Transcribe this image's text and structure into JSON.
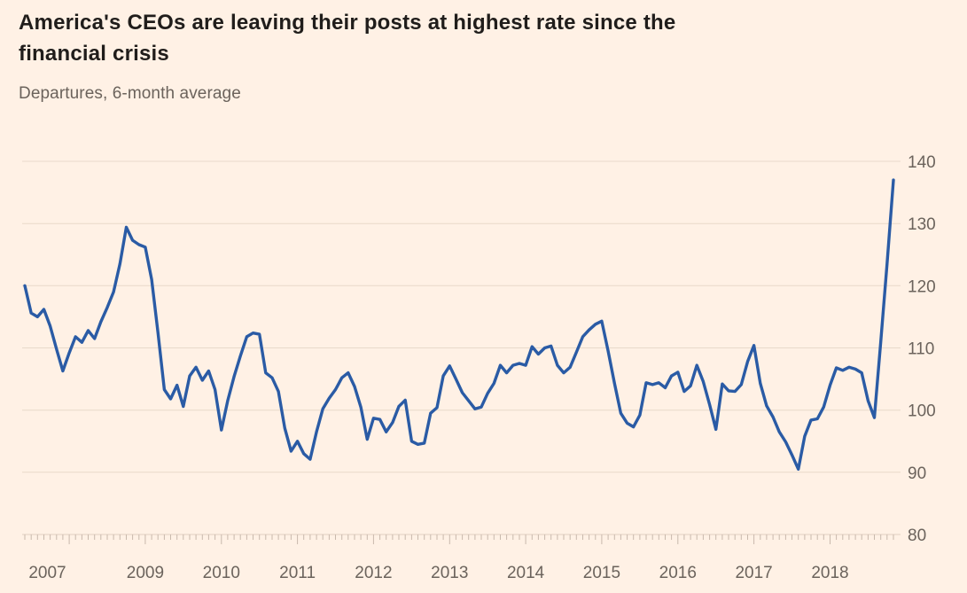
{
  "header": {
    "title_line1": "America's CEOs are leaving their posts at highest rate since the",
    "title_line2": "financial crisis",
    "subtitle": "Departures, 6-month average"
  },
  "chart_data": {
    "type": "line",
    "title": "America's CEOs are leaving their posts at highest rate since the financial crisis",
    "subtitle": "Departures, 6-month average",
    "series_name": "CEO departures, 6-month average",
    "frequency": "monthly",
    "start_month": "2007-06",
    "end_month": "2018-11",
    "values": [
      120.0,
      115.6,
      115.0,
      116.2,
      113.5,
      109.8,
      106.3,
      109.2,
      111.8,
      110.9,
      112.8,
      111.5,
      114.2,
      116.5,
      119.0,
      123.5,
      129.4,
      127.3,
      126.6,
      126.2,
      121.0,
      112.5,
      103.3,
      101.8,
      104.0,
      100.6,
      105.5,
      106.9,
      104.8,
      106.3,
      103.3,
      96.8,
      101.5,
      105.4,
      108.7,
      111.8,
      112.4,
      112.2,
      106.0,
      105.2,
      103.0,
      97.1,
      93.4,
      95.0,
      93.0,
      92.1,
      96.5,
      100.2,
      101.9,
      103.3,
      105.2,
      106.0,
      103.8,
      100.5,
      95.3,
      98.7,
      98.5,
      96.5,
      98.0,
      100.6,
      101.6,
      95.0,
      94.5,
      94.7,
      99.5,
      100.4,
      105.5,
      107.1,
      105.0,
      102.8,
      101.5,
      100.2,
      100.5,
      102.7,
      104.3,
      107.2,
      106.0,
      107.2,
      107.5,
      107.2,
      110.2,
      109.0,
      110.0,
      110.3,
      107.2,
      106.0,
      106.9,
      109.3,
      111.8,
      112.9,
      113.8,
      114.3,
      109.5,
      104.3,
      99.5,
      97.9,
      97.3,
      99.2,
      104.4,
      104.1,
      104.4,
      103.6,
      105.5,
      106.1,
      103.0,
      103.9,
      107.2,
      104.6,
      100.9,
      96.9,
      104.2,
      103.1,
      103.0,
      104.1,
      107.8,
      110.4,
      104.3,
      100.7,
      98.9,
      96.5,
      94.9,
      92.8,
      90.5,
      95.8,
      98.4,
      98.6,
      100.5,
      104.0,
      106.8,
      106.4,
      106.9,
      106.6,
      106.0,
      101.5,
      98.8,
      111.0,
      123.5,
      137.0
    ],
    "y_ticks": [
      80,
      90,
      100,
      110,
      120,
      130,
      140
    ],
    "ylim": [
      80,
      140
    ],
    "x_year_labels": [
      "2007",
      "2009",
      "2010",
      "2011",
      "2012",
      "2013",
      "2014",
      "2015",
      "2016",
      "2017",
      "2018"
    ],
    "grid": "horizontal",
    "legend": "none",
    "line_color": "#2a5ba5",
    "background_color": "#fff1e5",
    "axis_text_color": "#6b635c"
  }
}
